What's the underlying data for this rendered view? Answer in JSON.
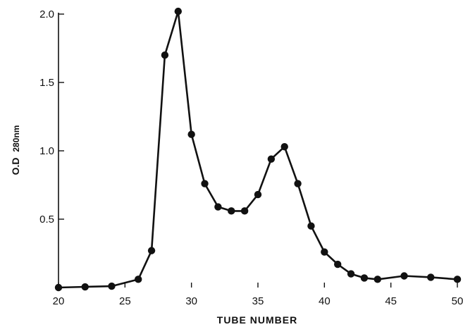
{
  "chart_data": {
    "type": "line",
    "title": "",
    "xlabel": "TUBE NUMBER",
    "ylabel": "O.D 280nm",
    "ylabel_parts": {
      "main": "O.D",
      "sub": "280nm"
    },
    "xlim": [
      20,
      50
    ],
    "ylim": [
      0,
      2.0
    ],
    "x_ticks": [
      "20",
      "25",
      "30",
      "35",
      "40",
      "45",
      "50"
    ],
    "y_ticks": [
      "0.5",
      "1.0",
      "1.5",
      "2.0"
    ],
    "grid": false,
    "legend": "none",
    "series": [
      {
        "color": "#111111",
        "points": [
          {
            "x": 20,
            "y": 0.0
          },
          {
            "x": 22,
            "y": 0.005
          },
          {
            "x": 24,
            "y": 0.01
          },
          {
            "x": 26,
            "y": 0.06
          },
          {
            "x": 27,
            "y": 0.27
          },
          {
            "x": 28,
            "y": 1.7
          },
          {
            "x": 29,
            "y": 2.02
          },
          {
            "x": 30,
            "y": 1.12
          },
          {
            "x": 31,
            "y": 0.76
          },
          {
            "x": 32,
            "y": 0.59
          },
          {
            "x": 33,
            "y": 0.56
          },
          {
            "x": 34,
            "y": 0.56
          },
          {
            "x": 35,
            "y": 0.68
          },
          {
            "x": 36,
            "y": 0.94
          },
          {
            "x": 37,
            "y": 1.03
          },
          {
            "x": 38,
            "y": 0.76
          },
          {
            "x": 39,
            "y": 0.45
          },
          {
            "x": 40,
            "y": 0.26
          },
          {
            "x": 41,
            "y": 0.17
          },
          {
            "x": 42,
            "y": 0.1
          },
          {
            "x": 43,
            "y": 0.07
          },
          {
            "x": 44,
            "y": 0.06
          },
          {
            "x": 46,
            "y": 0.085
          },
          {
            "x": 48,
            "y": 0.075
          },
          {
            "x": 50,
            "y": 0.06
          }
        ]
      }
    ]
  }
}
